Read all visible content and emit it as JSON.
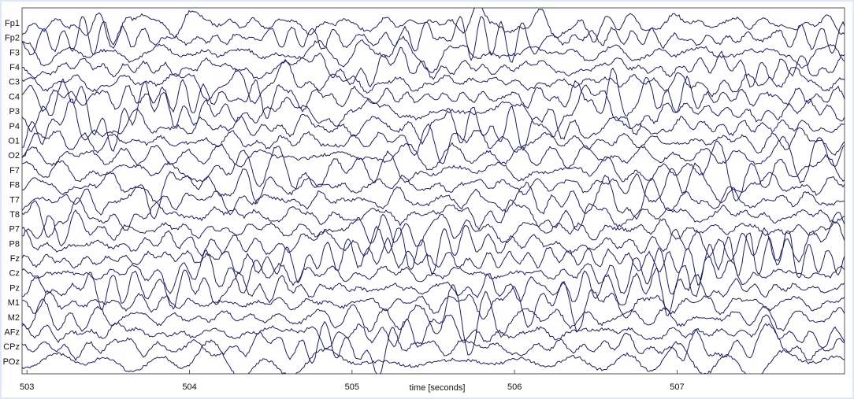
{
  "chart_data": {
    "type": "eeg",
    "categories": [
      "Fp1",
      "Fp2",
      "F3",
      "F4",
      "C3",
      "C4",
      "P3",
      "P4",
      "O1",
      "O2",
      "F7",
      "F8",
      "T7",
      "T8",
      "P7",
      "P8",
      "Fz",
      "Cz",
      "Pz",
      "M1",
      "M2",
      "AFz",
      "CPz",
      "POz"
    ],
    "xlabel": "time [seconds]",
    "xlim": [
      502.97,
      508.03
    ],
    "xticks": [
      503,
      504,
      505,
      506,
      507
    ],
    "color": "#1c1c6b"
  }
}
